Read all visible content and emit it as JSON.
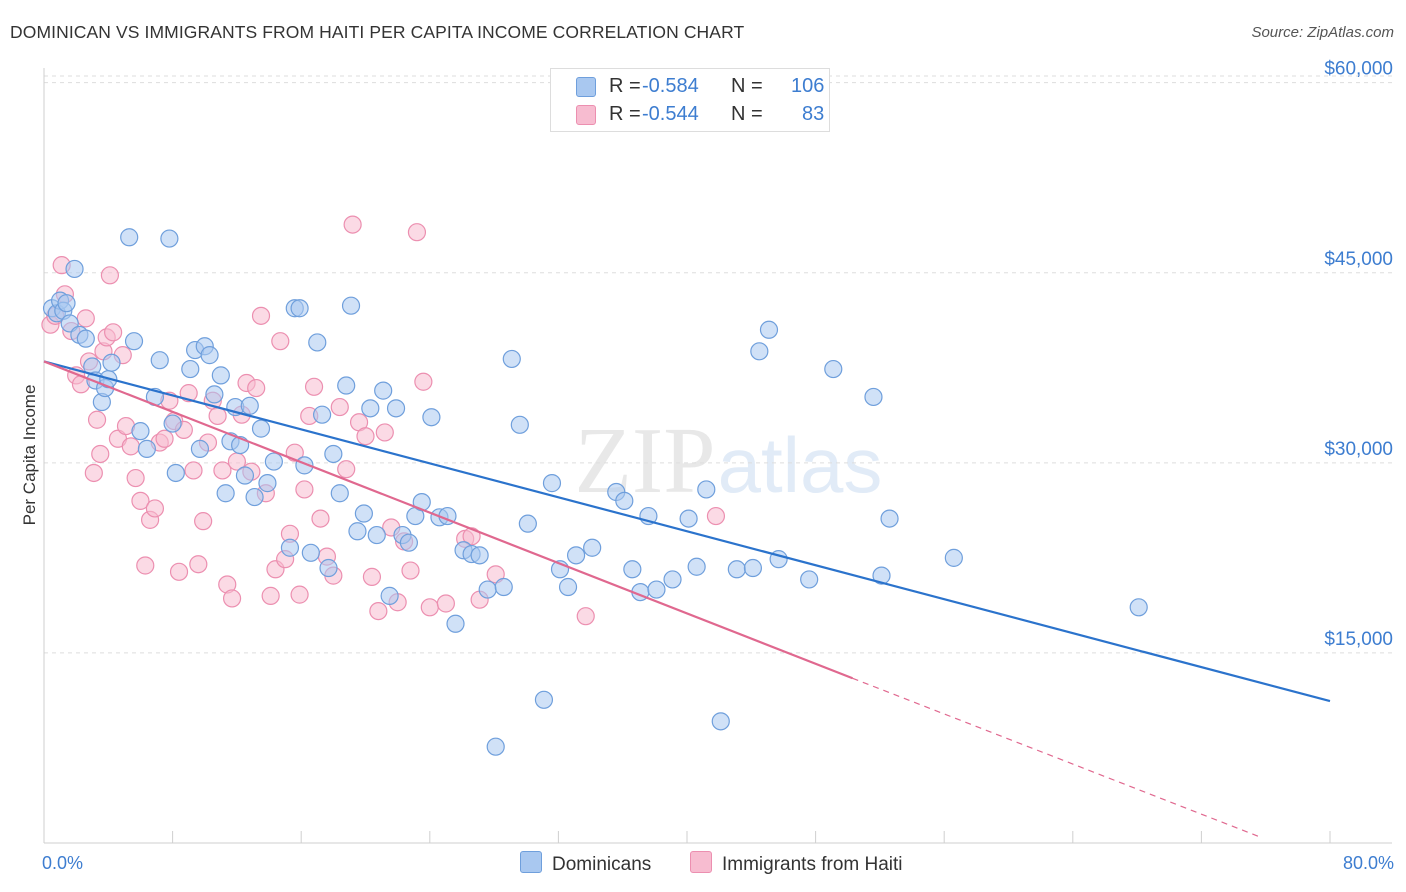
{
  "title": "DOMINICAN VS IMMIGRANTS FROM HAITI PER CAPITA INCOME CORRELATION CHART",
  "source": "Source: ZipAtlas.com",
  "watermark": {
    "zip": "ZIP",
    "atlas": "atlas"
  },
  "legend": {
    "rows": [
      {
        "r_label": "R =",
        "r_value": "-0.584",
        "n_label": "N =",
        "n_value": "106"
      },
      {
        "r_label": "R =",
        "r_value": "-0.544",
        "n_label": "N =",
        "n_value": "83"
      }
    ]
  },
  "bottom_legend": {
    "blue": "Dominicans",
    "pink": "Immigrants from Haiti"
  },
  "colors": {
    "blue_fill": "#a9c8f0",
    "blue_stroke": "#6f9fdc",
    "blue_line": "#2b73cc",
    "pink_fill": "#f7bcd0",
    "pink_stroke": "#ec8fb0",
    "pink_line": "#e0688f",
    "tick_text": "#3d7dd0",
    "grid": "#dddddd"
  },
  "chart_data": {
    "type": "scatter",
    "title": "DOMINICAN VS IMMIGRANTS FROM HAITI PER CAPITA INCOME CORRELATION CHART",
    "xlabel": "",
    "ylabel": "Per Capita Income",
    "xlim": [
      0,
      80
    ],
    "ylim": [
      0,
      61000
    ],
    "x_tick_labels": [
      "0.0%",
      "80.0%"
    ],
    "y_ticks": [
      15000,
      30000,
      45000,
      60000
    ],
    "y_tick_labels": [
      "$15,000",
      "$30,000",
      "$45,000",
      "$60,000"
    ],
    "series": [
      {
        "name": "Dominicans",
        "color": "blue",
        "r": -0.584,
        "n": 106,
        "trend": {
          "x0": 0,
          "y0": 38000,
          "x1": 80,
          "y1": 11200
        },
        "points": [
          [
            0.5,
            42200
          ],
          [
            0.8,
            41800
          ],
          [
            1.0,
            42800
          ],
          [
            1.2,
            42000
          ],
          [
            1.4,
            42600
          ],
          [
            1.6,
            41000
          ],
          [
            1.9,
            45300
          ],
          [
            2.2,
            40100
          ],
          [
            2.6,
            39800
          ],
          [
            3.0,
            37600
          ],
          [
            3.2,
            36500
          ],
          [
            3.6,
            34800
          ],
          [
            3.8,
            35900
          ],
          [
            4.0,
            36600
          ],
          [
            4.2,
            37900
          ],
          [
            5.3,
            47800
          ],
          [
            5.6,
            39600
          ],
          [
            6.0,
            32500
          ],
          [
            6.4,
            31100
          ],
          [
            6.9,
            35200
          ],
          [
            7.2,
            38100
          ],
          [
            7.8,
            47700
          ],
          [
            8.0,
            33100
          ],
          [
            8.2,
            29200
          ],
          [
            9.1,
            37400
          ],
          [
            9.4,
            38900
          ],
          [
            9.7,
            31100
          ],
          [
            10.0,
            39200
          ],
          [
            10.3,
            38500
          ],
          [
            10.6,
            35400
          ],
          [
            11.0,
            36900
          ],
          [
            11.3,
            27600
          ],
          [
            11.6,
            31700
          ],
          [
            11.9,
            34400
          ],
          [
            12.2,
            31400
          ],
          [
            12.5,
            29000
          ],
          [
            12.8,
            34500
          ],
          [
            13.1,
            27300
          ],
          [
            13.5,
            32700
          ],
          [
            13.9,
            28400
          ],
          [
            14.3,
            30100
          ],
          [
            15.3,
            23300
          ],
          [
            15.6,
            42200
          ],
          [
            15.9,
            42200
          ],
          [
            16.2,
            29800
          ],
          [
            16.6,
            22900
          ],
          [
            17.0,
            39500
          ],
          [
            17.3,
            33800
          ],
          [
            17.7,
            21700
          ],
          [
            18.0,
            30700
          ],
          [
            18.4,
            27600
          ],
          [
            18.8,
            36100
          ],
          [
            19.1,
            42400
          ],
          [
            19.5,
            24600
          ],
          [
            19.9,
            26000
          ],
          [
            20.3,
            34300
          ],
          [
            20.7,
            24300
          ],
          [
            21.1,
            35700
          ],
          [
            21.5,
            19500
          ],
          [
            21.9,
            34300
          ],
          [
            22.3,
            24300
          ],
          [
            22.7,
            23700
          ],
          [
            23.1,
            25800
          ],
          [
            23.5,
            26900
          ],
          [
            24.1,
            33600
          ],
          [
            24.6,
            25700
          ],
          [
            25.1,
            25800
          ],
          [
            25.6,
            17300
          ],
          [
            26.1,
            23100
          ],
          [
            26.6,
            22800
          ],
          [
            27.1,
            22700
          ],
          [
            27.6,
            20000
          ],
          [
            28.1,
            7600
          ],
          [
            28.6,
            20200
          ],
          [
            29.1,
            38200
          ],
          [
            29.6,
            33000
          ],
          [
            30.1,
            25200
          ],
          [
            31.1,
            11300
          ],
          [
            31.6,
            28400
          ],
          [
            32.1,
            21600
          ],
          [
            32.6,
            20200
          ],
          [
            33.1,
            22700
          ],
          [
            34.1,
            23300
          ],
          [
            35.6,
            27700
          ],
          [
            36.1,
            27000
          ],
          [
            36.6,
            21600
          ],
          [
            37.1,
            19800
          ],
          [
            37.6,
            25800
          ],
          [
            38.1,
            20000
          ],
          [
            39.1,
            20800
          ],
          [
            40.1,
            25600
          ],
          [
            40.6,
            21800
          ],
          [
            41.2,
            27900
          ],
          [
            42.1,
            9600
          ],
          [
            43.1,
            21600
          ],
          [
            44.1,
            21700
          ],
          [
            44.5,
            38800
          ],
          [
            45.1,
            40500
          ],
          [
            45.7,
            22400
          ],
          [
            47.6,
            20800
          ],
          [
            49.1,
            37400
          ],
          [
            51.6,
            35200
          ],
          [
            52.1,
            21100
          ],
          [
            52.6,
            25600
          ],
          [
            56.6,
            22500
          ],
          [
            68.1,
            18600
          ]
        ]
      },
      {
        "name": "Immigrants from Haiti",
        "color": "pink",
        "r": -0.544,
        "n": 83,
        "trend": {
          "x0": 0,
          "y0": 38000,
          "x1": 50.3,
          "y1": 13000
        },
        "trend_dashed": {
          "x0": 50.3,
          "y0": 13000,
          "x1": 75.8,
          "y1": 400
        },
        "points": [
          [
            0.4,
            40900
          ],
          [
            0.7,
            41600
          ],
          [
            1.1,
            45600
          ],
          [
            1.3,
            43300
          ],
          [
            1.7,
            40400
          ],
          [
            2.0,
            36900
          ],
          [
            2.3,
            36200
          ],
          [
            2.6,
            41400
          ],
          [
            2.8,
            38000
          ],
          [
            3.1,
            29200
          ],
          [
            3.3,
            33400
          ],
          [
            3.5,
            30700
          ],
          [
            3.7,
            38800
          ],
          [
            3.9,
            39900
          ],
          [
            4.1,
            44800
          ],
          [
            4.3,
            40300
          ],
          [
            4.6,
            31900
          ],
          [
            4.9,
            38500
          ],
          [
            5.1,
            32900
          ],
          [
            5.4,
            31300
          ],
          [
            5.7,
            28800
          ],
          [
            6.0,
            27000
          ],
          [
            6.3,
            21900
          ],
          [
            6.6,
            25500
          ],
          [
            6.9,
            26400
          ],
          [
            7.2,
            31600
          ],
          [
            7.5,
            31900
          ],
          [
            7.8,
            34900
          ],
          [
            8.1,
            33300
          ],
          [
            8.4,
            21400
          ],
          [
            8.7,
            32600
          ],
          [
            9.0,
            35500
          ],
          [
            9.3,
            29400
          ],
          [
            9.6,
            22000
          ],
          [
            9.9,
            25400
          ],
          [
            10.2,
            31600
          ],
          [
            10.5,
            34900
          ],
          [
            10.8,
            33700
          ],
          [
            11.1,
            29400
          ],
          [
            11.4,
            20400
          ],
          [
            11.7,
            19300
          ],
          [
            12.0,
            30100
          ],
          [
            12.3,
            33800
          ],
          [
            12.6,
            36300
          ],
          [
            12.9,
            29300
          ],
          [
            13.2,
            35900
          ],
          [
            13.5,
            41600
          ],
          [
            13.8,
            27600
          ],
          [
            14.1,
            19500
          ],
          [
            14.4,
            21600
          ],
          [
            14.7,
            39600
          ],
          [
            15.0,
            22400
          ],
          [
            15.3,
            24400
          ],
          [
            15.6,
            30800
          ],
          [
            15.9,
            19600
          ],
          [
            16.2,
            27900
          ],
          [
            16.5,
            33700
          ],
          [
            16.8,
            36000
          ],
          [
            17.2,
            25600
          ],
          [
            17.6,
            22600
          ],
          [
            18.0,
            21100
          ],
          [
            18.4,
            34400
          ],
          [
            18.8,
            29500
          ],
          [
            19.2,
            48800
          ],
          [
            19.6,
            33200
          ],
          [
            20.0,
            32100
          ],
          [
            20.4,
            21000
          ],
          [
            20.8,
            18300
          ],
          [
            21.2,
            32400
          ],
          [
            21.6,
            24900
          ],
          [
            22.0,
            19000
          ],
          [
            22.4,
            23800
          ],
          [
            22.8,
            21500
          ],
          [
            23.2,
            48200
          ],
          [
            23.6,
            36400
          ],
          [
            24.0,
            18600
          ],
          [
            25.0,
            18900
          ],
          [
            26.2,
            24000
          ],
          [
            26.6,
            24200
          ],
          [
            27.1,
            19200
          ],
          [
            28.1,
            21200
          ],
          [
            33.7,
            17900
          ],
          [
            41.8,
            25800
          ]
        ]
      }
    ]
  }
}
